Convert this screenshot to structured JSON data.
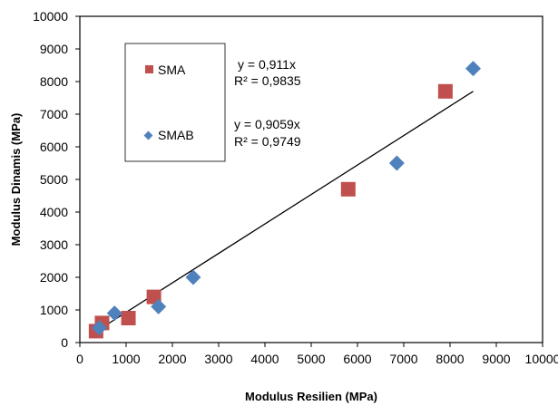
{
  "chart_data": {
    "type": "scatter",
    "xlabel": "Modulus Resilien (MPa)",
    "ylabel": "Modulus Dinamis (MPa)",
    "xlim": [
      0,
      10000
    ],
    "ylim": [
      0,
      10000
    ],
    "xticks": [
      0,
      1000,
      2000,
      3000,
      4000,
      5000,
      6000,
      7000,
      8000,
      9000,
      10000
    ],
    "yticks": [
      0,
      1000,
      2000,
      3000,
      4000,
      5000,
      6000,
      7000,
      8000,
      9000,
      10000
    ],
    "grid": false,
    "legend_position": "upper-left inside",
    "series": [
      {
        "name": "SMA",
        "marker": "square",
        "color": "#c0504d",
        "x": [
          350,
          480,
          1050,
          1600,
          5800,
          7900
        ],
        "y": [
          350,
          600,
          750,
          1400,
          4700,
          7700
        ]
      },
      {
        "name": "SMAB",
        "marker": "diamond",
        "color": "#4f81bd",
        "x": [
          420,
          750,
          1700,
          2450,
          6850,
          8500
        ],
        "y": [
          450,
          900,
          1100,
          2000,
          5500,
          8400
        ]
      }
    ],
    "trendline": {
      "x": [
        350,
        8500
      ],
      "y": [
        340,
        7700
      ],
      "color": "#000000"
    },
    "annotations": [
      {
        "series": "SMA",
        "equation": "y = 0,911x",
        "r2": "R² = 0,9835"
      },
      {
        "series": "SMAB",
        "equation": "y = 0,9059x",
        "r2": "R² = 0,9749"
      }
    ]
  }
}
